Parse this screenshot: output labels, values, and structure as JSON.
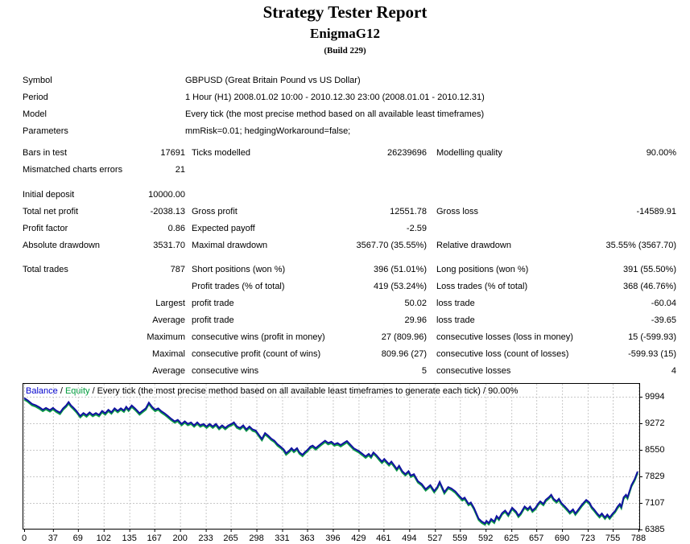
{
  "header": {
    "title": "Strategy Tester Report",
    "ea_name": "EnigmaG12",
    "build": "(Build 229)"
  },
  "table": {
    "rows": [
      {
        "type": "wide",
        "gap": "",
        "l1": "Symbol",
        "v": "GBPUSD (Great Britain Pound vs US Dollar)"
      },
      {
        "type": "wide",
        "gap": "",
        "l1": "Period",
        "v": "1 Hour (H1) 2008.01.02 10:00 - 2010.12.30 23:00 (2008.01.01 - 2010.12.31)"
      },
      {
        "type": "wide",
        "gap": "",
        "l1": "Model",
        "v": "Every tick (the most precise method based on all available least timeframes)"
      },
      {
        "type": "wide",
        "gap": "",
        "l1": "Parameters",
        "v": "mmRisk=0.01; hedgingWorkaround=false;"
      },
      {
        "type": "cols",
        "gap": "gap6",
        "l1": "Bars in test",
        "v1": "17691",
        "l2": "Ticks modelled",
        "v2": "26239696",
        "l3": "Modelling quality",
        "v3": "90.00%"
      },
      {
        "type": "cols",
        "gap": "",
        "l1": "Mismatched charts errors",
        "v1": "21",
        "l2": "",
        "v2": "",
        "l3": "",
        "v3": ""
      },
      {
        "type": "cols",
        "gap": "gap10",
        "l1": "Initial deposit",
        "v1": "10000.00",
        "l2": "",
        "v2": "",
        "l3": "",
        "v3": ""
      },
      {
        "type": "cols",
        "gap": "",
        "l1": "Total net profit",
        "v1": "-2038.13",
        "l2": "Gross profit",
        "v2": "12551.78",
        "l3": "Gross loss",
        "v3": "-14589.91"
      },
      {
        "type": "cols",
        "gap": "",
        "l1": "Profit factor",
        "v1": "0.86",
        "l2": "Expected payoff",
        "v2": "-2.59",
        "l3": "",
        "v3": ""
      },
      {
        "type": "cols",
        "gap": "",
        "l1": "Absolute drawdown",
        "v1": "3531.70",
        "l2": "Maximal drawdown",
        "v2": "3567.70 (35.55%)",
        "l3": "Relative drawdown",
        "v3": "35.55% (3567.70)"
      },
      {
        "type": "cols",
        "gap": "gap9",
        "l1": "Total trades",
        "v1": "787",
        "l2": "Short positions (won %)",
        "v2": "396 (51.01%)",
        "l3": "Long positions (won %)",
        "v3": "391 (55.50%)"
      },
      {
        "type": "cols",
        "gap": "",
        "l1": "",
        "v1": "",
        "l2": "Profit trades (% of total)",
        "v2": "419 (53.24%)",
        "l3": "Loss trades (% of total)",
        "v3": "368 (46.76%)"
      },
      {
        "type": "cols",
        "gap": "",
        "l1": "",
        "v1": "Largest",
        "l2": "profit trade",
        "v2": "50.02",
        "l3": "loss trade",
        "v3": "-60.04"
      },
      {
        "type": "cols",
        "gap": "",
        "l1": "",
        "v1": "Average",
        "l2": "profit trade",
        "v2": "29.96",
        "l3": "loss trade",
        "v3": "-39.65"
      },
      {
        "type": "cols",
        "gap": "",
        "l1": "",
        "v1": "Maximum",
        "l2": "consecutive wins (profit in money)",
        "v2": "27 (809.96)",
        "l3": "consecutive losses (loss in money)",
        "v3": "15 (-599.93)"
      },
      {
        "type": "cols",
        "gap": "",
        "l1": "",
        "v1": "Maximal",
        "l2": "consecutive profit (count of wins)",
        "v2": "809.96 (27)",
        "l3": "consecutive loss (count of losses)",
        "v3": "-599.93 (15)"
      },
      {
        "type": "cols",
        "gap": "",
        "l1": "",
        "v1": "Average",
        "l2": "consecutive wins",
        "v2": "5",
        "l3": "consecutive losses",
        "v3": "4"
      }
    ]
  },
  "chart_data": {
    "type": "line",
    "legend_segments": [
      {
        "text": "Balance",
        "color": "#0000cc"
      },
      {
        "text": " / ",
        "color": "#000000"
      },
      {
        "text": "Equity",
        "color": "#009b3c"
      },
      {
        "text": " / Every tick (the most precise method based on all available least timeframes to generate each tick) / 90.00%",
        "color": "#000000"
      }
    ],
    "x_ticks": [
      0,
      37,
      69,
      102,
      135,
      167,
      200,
      233,
      265,
      298,
      331,
      363,
      396,
      429,
      461,
      494,
      527,
      559,
      592,
      625,
      657,
      690,
      723,
      755,
      788
    ],
    "y_ticks": [
      9994,
      9272,
      8550,
      7829,
      7107,
      6385
    ],
    "xlim": [
      0,
      788
    ],
    "ylim": [
      6385,
      9994
    ],
    "grid": "dashed",
    "legend_position": "top-left-inside",
    "series": [
      {
        "name": "Balance",
        "color": "#1212a0",
        "points": [
          [
            0,
            9960
          ],
          [
            5,
            9890
          ],
          [
            10,
            9800
          ],
          [
            15,
            9760
          ],
          [
            20,
            9700
          ],
          [
            24,
            9640
          ],
          [
            28,
            9690
          ],
          [
            33,
            9630
          ],
          [
            37,
            9690
          ],
          [
            41,
            9620
          ],
          [
            46,
            9560
          ],
          [
            50,
            9680
          ],
          [
            54,
            9760
          ],
          [
            57,
            9850
          ],
          [
            60,
            9760
          ],
          [
            63,
            9700
          ],
          [
            67,
            9610
          ],
          [
            72,
            9470
          ],
          [
            76,
            9550
          ],
          [
            80,
            9490
          ],
          [
            84,
            9570
          ],
          [
            88,
            9500
          ],
          [
            92,
            9550
          ],
          [
            96,
            9500
          ],
          [
            100,
            9610
          ],
          [
            104,
            9545
          ],
          [
            108,
            9640
          ],
          [
            112,
            9570
          ],
          [
            116,
            9680
          ],
          [
            120,
            9610
          ],
          [
            124,
            9680
          ],
          [
            128,
            9620
          ],
          [
            131,
            9720
          ],
          [
            134,
            9645
          ],
          [
            138,
            9755
          ],
          [
            142,
            9680
          ],
          [
            145,
            9615
          ],
          [
            148,
            9545
          ],
          [
            152,
            9615
          ],
          [
            156,
            9680
          ],
          [
            160,
            9835
          ],
          [
            164,
            9720
          ],
          [
            168,
            9640
          ],
          [
            172,
            9680
          ],
          [
            176,
            9600
          ],
          [
            180,
            9545
          ],
          [
            184,
            9475
          ],
          [
            188,
            9405
          ],
          [
            193,
            9325
          ],
          [
            197,
            9365
          ],
          [
            202,
            9255
          ],
          [
            206,
            9325
          ],
          [
            210,
            9255
          ],
          [
            214,
            9295
          ],
          [
            218,
            9215
          ],
          [
            222,
            9295
          ],
          [
            226,
            9215
          ],
          [
            230,
            9255
          ],
          [
            234,
            9185
          ],
          [
            238,
            9255
          ],
          [
            242,
            9185
          ],
          [
            246,
            9255
          ],
          [
            250,
            9145
          ],
          [
            254,
            9215
          ],
          [
            258,
            9145
          ],
          [
            262,
            9215
          ],
          [
            266,
            9255
          ],
          [
            269,
            9295
          ],
          [
            273,
            9185
          ],
          [
            277,
            9145
          ],
          [
            281,
            9215
          ],
          [
            285,
            9105
          ],
          [
            289,
            9185
          ],
          [
            293,
            9105
          ],
          [
            297,
            9075
          ],
          [
            301,
            8960
          ],
          [
            305,
            8845
          ],
          [
            309,
            9005
          ],
          [
            313,
            8935
          ],
          [
            317,
            8855
          ],
          [
            321,
            8800
          ],
          [
            325,
            8700
          ],
          [
            329,
            8635
          ],
          [
            333,
            8560
          ],
          [
            336,
            8455
          ],
          [
            340,
            8525
          ],
          [
            343,
            8595
          ],
          [
            346,
            8525
          ],
          [
            350,
            8595
          ],
          [
            353,
            8485
          ],
          [
            357,
            8415
          ],
          [
            360,
            8485
          ],
          [
            364,
            8560
          ],
          [
            367,
            8635
          ],
          [
            370,
            8665
          ],
          [
            374,
            8595
          ],
          [
            378,
            8665
          ],
          [
            382,
            8735
          ],
          [
            386,
            8800
          ],
          [
            390,
            8735
          ],
          [
            394,
            8770
          ],
          [
            398,
            8700
          ],
          [
            402,
            8735
          ],
          [
            406,
            8680
          ],
          [
            410,
            8735
          ],
          [
            414,
            8790
          ],
          [
            418,
            8700
          ],
          [
            423,
            8590
          ],
          [
            429,
            8520
          ],
          [
            434,
            8440
          ],
          [
            438,
            8370
          ],
          [
            442,
            8440
          ],
          [
            445,
            8370
          ],
          [
            448,
            8480
          ],
          [
            452,
            8400
          ],
          [
            456,
            8300
          ],
          [
            459,
            8230
          ],
          [
            462,
            8300
          ],
          [
            465,
            8230
          ],
          [
            468,
            8160
          ],
          [
            471,
            8230
          ],
          [
            475,
            8120
          ],
          [
            478,
            8030
          ],
          [
            481,
            8120
          ],
          [
            485,
            7970
          ],
          [
            489,
            7890
          ],
          [
            493,
            7970
          ],
          [
            496,
            7850
          ],
          [
            500,
            7890
          ],
          [
            505,
            7700
          ],
          [
            510,
            7620
          ],
          [
            515,
            7480
          ],
          [
            521,
            7590
          ],
          [
            526,
            7430
          ],
          [
            530,
            7540
          ],
          [
            533,
            7680
          ],
          [
            539,
            7400
          ],
          [
            544,
            7540
          ],
          [
            548,
            7500
          ],
          [
            553,
            7420
          ],
          [
            558,
            7300
          ],
          [
            562,
            7210
          ],
          [
            565,
            7250
          ],
          [
            570,
            7080
          ],
          [
            573,
            7120
          ],
          [
            577,
            6970
          ],
          [
            583,
            6680
          ],
          [
            587,
            6600
          ],
          [
            591,
            6550
          ],
          [
            593,
            6620
          ],
          [
            596,
            6560
          ],
          [
            599,
            6670
          ],
          [
            603,
            6600
          ],
          [
            606,
            6750
          ],
          [
            609,
            6680
          ],
          [
            613,
            6830
          ],
          [
            617,
            6900
          ],
          [
            621,
            6790
          ],
          [
            626,
            6975
          ],
          [
            631,
            6870
          ],
          [
            634,
            6760
          ],
          [
            637,
            6830
          ],
          [
            642,
            7010
          ],
          [
            646,
            6940
          ],
          [
            649,
            7010
          ],
          [
            652,
            6900
          ],
          [
            656,
            6975
          ],
          [
            659,
            7080
          ],
          [
            662,
            7150
          ],
          [
            666,
            7080
          ],
          [
            669,
            7190
          ],
          [
            673,
            7260
          ],
          [
            676,
            7330
          ],
          [
            679,
            7220
          ],
          [
            683,
            7150
          ],
          [
            686,
            7220
          ],
          [
            689,
            7110
          ],
          [
            694,
            7000
          ],
          [
            697,
            6930
          ],
          [
            700,
            6855
          ],
          [
            704,
            6930
          ],
          [
            707,
            6820
          ],
          [
            710,
            6900
          ],
          [
            715,
            7045
          ],
          [
            718,
            7120
          ],
          [
            721,
            7190
          ],
          [
            725,
            7120
          ],
          [
            728,
            7000
          ],
          [
            731,
            6930
          ],
          [
            735,
            6820
          ],
          [
            738,
            6750
          ],
          [
            741,
            6820
          ],
          [
            745,
            6710
          ],
          [
            748,
            6790
          ],
          [
            751,
            6710
          ],
          [
            755,
            6820
          ],
          [
            758,
            6890
          ],
          [
            761,
            7000
          ],
          [
            764,
            7080
          ],
          [
            766,
            7000
          ],
          [
            769,
            7260
          ],
          [
            772,
            7330
          ],
          [
            774,
            7260
          ],
          [
            779,
            7590
          ],
          [
            783,
            7750
          ],
          [
            787,
            7962
          ]
        ]
      },
      {
        "name": "Equity",
        "color": "#0fa044",
        "derived_from": "Balance",
        "value_offset": -40
      }
    ]
  }
}
